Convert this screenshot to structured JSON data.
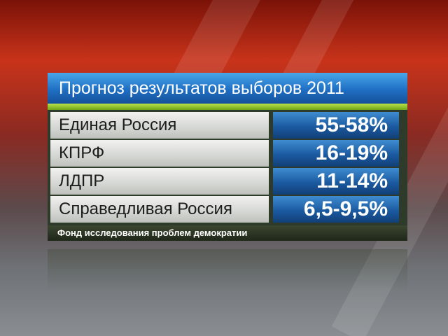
{
  "title": "Прогноз результатов выборов 2011",
  "table": {
    "rows": [
      [
        "Единая Россия",
        "55-58%"
      ],
      [
        "КПРФ",
        "16-19%"
      ],
      [
        "ЛДПР",
        "11-14%"
      ],
      [
        "Справедливая Россия",
        "6,5-9,5%"
      ]
    ]
  },
  "source": "Фонд исследования проблем демократии"
}
